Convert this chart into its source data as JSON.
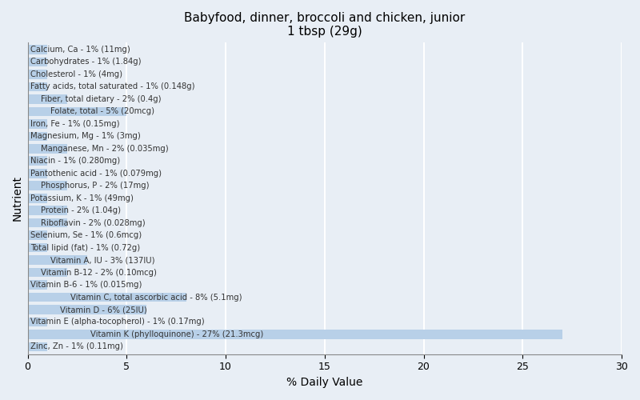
{
  "title": "Babyfood, dinner, broccoli and chicken, junior\n1 tbsp (29g)",
  "xlabel": "% Daily Value",
  "ylabel": "Nutrient",
  "xlim": [
    0,
    30
  ],
  "xticks": [
    0,
    5,
    10,
    15,
    20,
    25,
    30
  ],
  "bar_color": "#b8d0e8",
  "background_color": "#e8eef5",
  "plot_background": "#e8eef5",
  "text_color": "#333333",
  "grid_color": "#ffffff",
  "nutrients": [
    {
      "label": "Calcium, Ca - 1% (11mg)",
      "value": 1,
      "indent": 0
    },
    {
      "label": "Carbohydrates - 1% (1.84g)",
      "value": 1,
      "indent": 0
    },
    {
      "label": "Cholesterol - 1% (4mg)",
      "value": 1,
      "indent": 0
    },
    {
      "label": "Fatty acids, total saturated - 1% (0.148g)",
      "value": 1,
      "indent": 0
    },
    {
      "label": "Fiber, total dietary - 2% (0.4g)",
      "value": 2,
      "indent": 1
    },
    {
      "label": "Folate, total - 5% (20mcg)",
      "value": 5,
      "indent": 2
    },
    {
      "label": "Iron, Fe - 1% (0.15mg)",
      "value": 1,
      "indent": 0
    },
    {
      "label": "Magnesium, Mg - 1% (3mg)",
      "value": 1,
      "indent": 0
    },
    {
      "label": "Manganese, Mn - 2% (0.035mg)",
      "value": 2,
      "indent": 1
    },
    {
      "label": "Niacin - 1% (0.280mg)",
      "value": 1,
      "indent": 0
    },
    {
      "label": "Pantothenic acid - 1% (0.079mg)",
      "value": 1,
      "indent": 0
    },
    {
      "label": "Phosphorus, P - 2% (17mg)",
      "value": 2,
      "indent": 1
    },
    {
      "label": "Potassium, K - 1% (49mg)",
      "value": 1,
      "indent": 0
    },
    {
      "label": "Protein - 2% (1.04g)",
      "value": 2,
      "indent": 1
    },
    {
      "label": "Riboflavin - 2% (0.028mg)",
      "value": 2,
      "indent": 1
    },
    {
      "label": "Selenium, Se - 1% (0.6mcg)",
      "value": 1,
      "indent": 0
    },
    {
      "label": "Total lipid (fat) - 1% (0.72g)",
      "value": 1,
      "indent": 0
    },
    {
      "label": "Vitamin A, IU - 3% (137IU)",
      "value": 3,
      "indent": 2
    },
    {
      "label": "Vitamin B-12 - 2% (0.10mcg)",
      "value": 2,
      "indent": 1
    },
    {
      "label": "Vitamin B-6 - 1% (0.015mg)",
      "value": 1,
      "indent": 0
    },
    {
      "label": "Vitamin C, total ascorbic acid - 8% (5.1mg)",
      "value": 8,
      "indent": 4
    },
    {
      "label": "Vitamin D - 6% (25IU)",
      "value": 6,
      "indent": 3
    },
    {
      "label": "Vitamin E (alpha-tocopherol) - 1% (0.17mg)",
      "value": 1,
      "indent": 0
    },
    {
      "label": "Vitamin K (phylloquinone) - 27% (21.3mcg)",
      "value": 27,
      "indent": 6
    },
    {
      "label": "Zinc, Zn - 1% (0.11mg)",
      "value": 1,
      "indent": 0
    }
  ]
}
